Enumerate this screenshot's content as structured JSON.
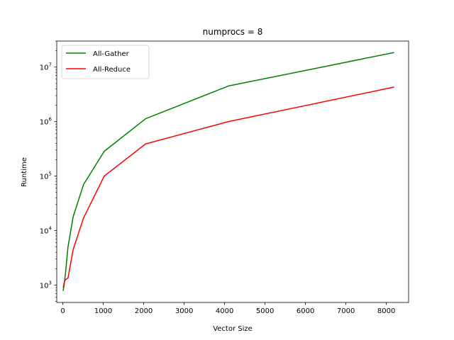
{
  "chart_data": {
    "type": "line",
    "title": "numprocs = 8",
    "xlabel": "Vector Size",
    "ylabel": "Runtime",
    "xlim": [
      -150,
      8550
    ],
    "ylim": [
      480,
      30000000
    ],
    "yscale": "log",
    "grid": false,
    "legend_position": "top-left",
    "x_ticks": [
      0,
      1000,
      2000,
      3000,
      4000,
      5000,
      6000,
      7000,
      8000
    ],
    "x_tick_labels": [
      "0",
      "1000",
      "2000",
      "3000",
      "4000",
      "5000",
      "6000",
      "7000",
      "8000"
    ],
    "y_major_ticks": [
      1000,
      10000,
      100000,
      1000000,
      10000000
    ],
    "y_tick_labels": [
      {
        "base": "10",
        "exp": "3"
      },
      {
        "base": "10",
        "exp": "4"
      },
      {
        "base": "10",
        "exp": "5"
      },
      {
        "base": "10",
        "exp": "6"
      },
      {
        "base": "10",
        "exp": "7"
      }
    ],
    "x": [
      8,
      16,
      32,
      64,
      128,
      256,
      512,
      1024,
      2048,
      4096,
      8192
    ],
    "series": [
      {
        "name": "All-Gather",
        "color": "#008000",
        "values": [
          780,
          850,
          1000,
          1600,
          5000,
          18000,
          70000,
          285000,
          1130000,
          4500000,
          18500000
        ]
      },
      {
        "name": "All-Reduce",
        "color": "#ff0000",
        "values": [
          900,
          950,
          1100,
          1250,
          1350,
          4500,
          17000,
          100000,
          390000,
          1000000,
          4300000
        ]
      }
    ]
  }
}
